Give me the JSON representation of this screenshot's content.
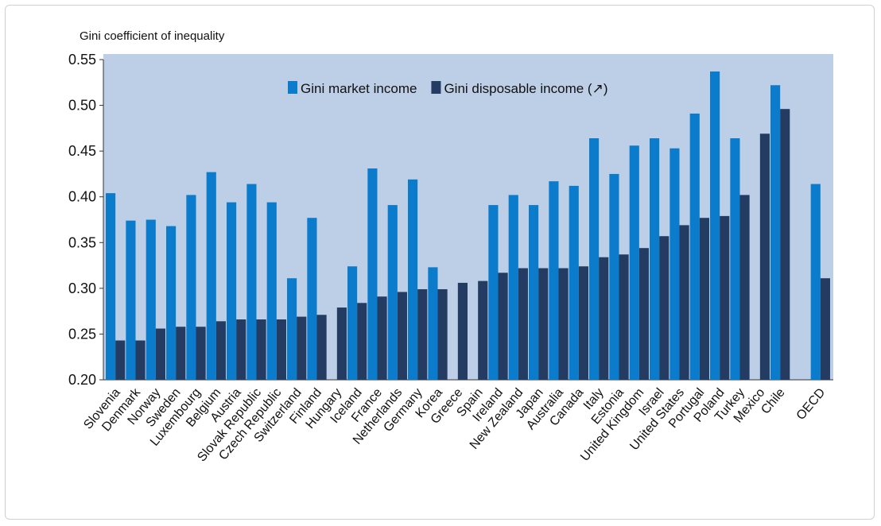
{
  "chart_data": {
    "type": "bar",
    "y_label": "Gini coefficient of inequality",
    "categories": [
      "Slovenia",
      "Denmark",
      "Norway",
      "Sweden",
      "Luxembourg",
      "Belgium",
      "Austria",
      "Slovak Republic",
      "Czech Republic",
      "Switzerland",
      "Finland",
      "Hungary",
      "Iceland",
      "France",
      "Netherlands",
      "Germany",
      "Korea",
      "Greece",
      "Spain",
      "Ireland",
      "New Zealand",
      "Japan",
      "Australia",
      "Canada",
      "Italy",
      "Estonia",
      "United Kingdom",
      "Israel",
      "United States",
      "Portugal",
      "Poland",
      "Turkey",
      "Mexico",
      "Chile",
      null,
      "OECD"
    ],
    "series": [
      {
        "name": "Gini market income",
        "color": "#0b7ccc",
        "values": [
          0.404,
          0.374,
          0.375,
          0.368,
          0.402,
          0.427,
          0.394,
          0.414,
          0.394,
          0.311,
          0.377,
          null,
          0.324,
          0.431,
          0.391,
          0.419,
          0.323,
          null,
          null,
          0.391,
          0.402,
          0.391,
          0.417,
          0.412,
          0.464,
          0.425,
          0.456,
          0.464,
          0.453,
          0.491,
          0.537,
          0.464,
          null,
          0.522,
          null,
          0.414
        ]
      },
      {
        "name": "Gini disposable income (↗)",
        "color": "#243c62",
        "values": [
          0.243,
          0.243,
          0.256,
          0.258,
          0.258,
          0.264,
          0.266,
          0.266,
          0.266,
          0.269,
          0.271,
          0.279,
          0.284,
          0.291,
          0.296,
          0.299,
          0.299,
          0.306,
          0.308,
          0.317,
          0.322,
          0.322,
          0.322,
          0.324,
          0.334,
          0.337,
          0.344,
          0.357,
          0.369,
          0.377,
          0.379,
          0.402,
          0.469,
          0.496,
          null,
          0.311
        ]
      }
    ],
    "ylim": [
      0.2,
      0.55
    ],
    "yticks": [
      {
        "value": 0.2,
        "label": "0.20"
      },
      0.25,
      {
        "value": 0.3,
        "label": "0.30"
      },
      0.35,
      {
        "value": 0.4,
        "label": "0.40"
      },
      0.45,
      {
        "value": 0.5,
        "label": "0.50"
      },
      0.55
    ],
    "grid": false,
    "legend": "top"
  }
}
